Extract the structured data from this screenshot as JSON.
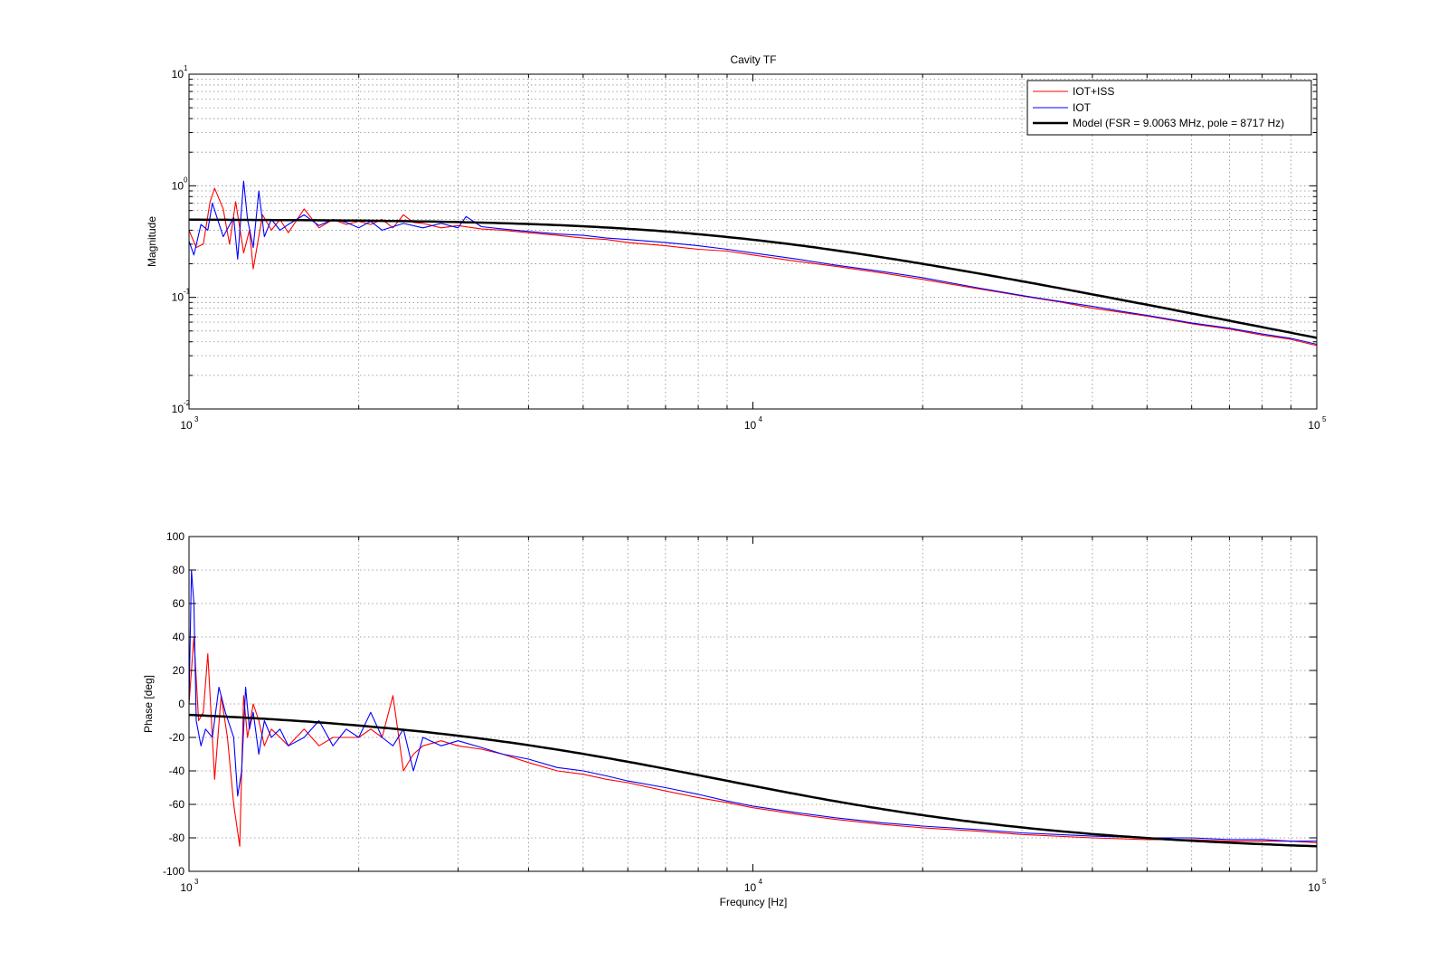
{
  "figure": {
    "title": "Cavity TF",
    "background": "#ffffff"
  },
  "chart_data": [
    {
      "type": "line",
      "title": "Cavity TF",
      "xlabel": "",
      "ylabel": "Magnitude",
      "xscale": "log",
      "yscale": "log",
      "xlim": [
        1000,
        100000
      ],
      "ylim": [
        0.01,
        10
      ],
      "x_ticks": [
        1000,
        10000,
        100000
      ],
      "x_tick_labels": [
        {
          "base": "10",
          "exp": "3"
        },
        {
          "base": "10",
          "exp": "4"
        },
        {
          "base": "10",
          "exp": "5"
        }
      ],
      "y_ticks": [
        0.01,
        0.1,
        1,
        10
      ],
      "y_tick_labels": [
        {
          "base": "10",
          "exp": "-2"
        },
        {
          "base": "10",
          "exp": "-1"
        },
        {
          "base": "10",
          "exp": "0"
        },
        {
          "base": "10",
          "exp": "1"
        }
      ],
      "grid": true,
      "legend_position": "top-right",
      "series": [
        {
          "name": "IOT+ISS",
          "color": "#ff0000",
          "stroke": "thin",
          "x": [
            1000,
            1030,
            1060,
            1090,
            1110,
            1150,
            1180,
            1210,
            1250,
            1280,
            1300,
            1350,
            1400,
            1450,
            1500,
            1600,
            1700,
            1800,
            1900,
            2000,
            2100,
            2200,
            2300,
            2400,
            2500,
            2600,
            2800,
            3000,
            3300,
            3600,
            4000,
            4500,
            5000,
            5500,
            6000,
            7000,
            8000,
            9000,
            10000,
            12000,
            14000,
            17000,
            20000,
            25000,
            30000,
            35000,
            40000,
            50000,
            60000,
            70000,
            80000,
            90000,
            100000
          ],
          "y": [
            0.4,
            0.28,
            0.3,
            0.72,
            0.95,
            0.62,
            0.3,
            0.72,
            0.25,
            0.4,
            0.18,
            0.55,
            0.4,
            0.5,
            0.38,
            0.62,
            0.42,
            0.5,
            0.45,
            0.48,
            0.45,
            0.5,
            0.42,
            0.55,
            0.47,
            0.46,
            0.42,
            0.44,
            0.41,
            0.4,
            0.38,
            0.36,
            0.34,
            0.33,
            0.31,
            0.29,
            0.27,
            0.26,
            0.24,
            0.21,
            0.19,
            0.165,
            0.145,
            0.12,
            0.103,
            0.091,
            0.08,
            0.068,
            0.058,
            0.052,
            0.046,
            0.042,
            0.037
          ]
        },
        {
          "name": "IOT",
          "color": "#0000ff",
          "stroke": "thin",
          "x": [
            1000,
            1020,
            1050,
            1080,
            1100,
            1150,
            1200,
            1220,
            1250,
            1270,
            1300,
            1330,
            1360,
            1400,
            1450,
            1500,
            1600,
            1700,
            1800,
            1900,
            2000,
            2100,
            2200,
            2400,
            2600,
            2800,
            3000,
            3100,
            3300,
            3600,
            4000,
            4500,
            5000,
            5500,
            6000,
            7000,
            7500,
            8000,
            9000,
            10000,
            12000,
            14000,
            17000,
            20000,
            25000,
            30000,
            35000,
            40000,
            45000,
            50000,
            60000,
            70000,
            80000,
            90000,
            100000
          ],
          "y": [
            0.32,
            0.24,
            0.45,
            0.4,
            0.7,
            0.35,
            0.52,
            0.22,
            1.1,
            0.5,
            0.28,
            0.9,
            0.35,
            0.5,
            0.4,
            0.45,
            0.55,
            0.44,
            0.5,
            0.47,
            0.42,
            0.48,
            0.4,
            0.46,
            0.42,
            0.46,
            0.42,
            0.53,
            0.43,
            0.41,
            0.39,
            0.37,
            0.36,
            0.34,
            0.33,
            0.31,
            0.3,
            0.29,
            0.27,
            0.25,
            0.22,
            0.195,
            0.17,
            0.15,
            0.122,
            0.104,
            0.092,
            0.083,
            0.075,
            0.069,
            0.059,
            0.053,
            0.047,
            0.043,
            0.038
          ]
        },
        {
          "name": "Model (FSR = 9.0063 MHz, pole = 8717 Hz)",
          "color": "#000000",
          "stroke": "thick",
          "model": "pole",
          "dc_gain": 0.5,
          "pole_hz": 8717,
          "fsr_mhz": 9.0063
        }
      ]
    },
    {
      "type": "line",
      "title": "",
      "xlabel": "Frequncy [Hz]",
      "ylabel": "Phase [deg]",
      "xscale": "log",
      "yscale": "linear",
      "xlim": [
        1000,
        100000
      ],
      "ylim": [
        -100,
        100
      ],
      "x_ticks": [
        1000,
        10000,
        100000
      ],
      "x_tick_labels": [
        {
          "base": "10",
          "exp": "3"
        },
        {
          "base": "10",
          "exp": "4"
        },
        {
          "base": "10",
          "exp": "5"
        }
      ],
      "y_ticks": [
        -100,
        -80,
        -60,
        -40,
        -20,
        0,
        20,
        40,
        60,
        80,
        100
      ],
      "y_tick_labels": [
        "-100",
        "-80",
        "-60",
        "-40",
        "-20",
        "0",
        "20",
        "40",
        "60",
        "80",
        "100"
      ],
      "grid": true,
      "series": [
        {
          "name": "IOT+ISS",
          "color": "#ff0000",
          "stroke": "thin",
          "x": [
            1000,
            1020,
            1040,
            1060,
            1080,
            1110,
            1140,
            1170,
            1200,
            1230,
            1250,
            1270,
            1300,
            1330,
            1360,
            1400,
            1450,
            1500,
            1600,
            1700,
            1800,
            1900,
            2000,
            2100,
            2200,
            2300,
            2400,
            2500,
            2600,
            2800,
            3000,
            3300,
            3600,
            4000,
            4500,
            5000,
            5500,
            6000,
            7000,
            8000,
            9000,
            10000,
            12000,
            14000,
            17000,
            20000,
            25000,
            30000,
            40000,
            50000,
            60000,
            70000,
            80000,
            90000,
            100000
          ],
          "y": [
            0,
            40,
            -10,
            -5,
            30,
            -45,
            5,
            -20,
            -60,
            -85,
            5,
            -20,
            0,
            -10,
            -25,
            -15,
            -20,
            -25,
            -15,
            -25,
            -20,
            -20,
            -20,
            -15,
            -20,
            5,
            -40,
            -30,
            -25,
            -22,
            -25,
            -27,
            -30,
            -35,
            -40,
            -42,
            -45,
            -47,
            -52,
            -56,
            -59,
            -62,
            -66,
            -69,
            -72,
            -74,
            -76,
            -78,
            -80,
            -81,
            -81,
            -82,
            -82,
            -82,
            -83
          ]
        },
        {
          "name": "IOT",
          "color": "#0000ff",
          "stroke": "thin",
          "x": [
            1000,
            1010,
            1020,
            1030,
            1050,
            1070,
            1100,
            1130,
            1160,
            1200,
            1220,
            1240,
            1260,
            1280,
            1300,
            1330,
            1360,
            1400,
            1450,
            1500,
            1600,
            1700,
            1800,
            1900,
            2000,
            2100,
            2200,
            2300,
            2400,
            2500,
            2600,
            2800,
            3000,
            3300,
            3600,
            4000,
            4500,
            5000,
            5500,
            6000,
            7000,
            8000,
            9000,
            10000,
            12000,
            14000,
            17000,
            20000,
            25000,
            30000,
            40000,
            50000,
            60000,
            70000,
            80000,
            90000,
            100000
          ],
          "y": [
            0,
            80,
            60,
            -10,
            -25,
            -15,
            -20,
            10,
            -5,
            -20,
            -55,
            -40,
            10,
            -15,
            -5,
            -30,
            -10,
            -20,
            -15,
            -25,
            -20,
            -10,
            -25,
            -15,
            -20,
            -5,
            -20,
            -25,
            -15,
            -40,
            -20,
            -25,
            -22,
            -26,
            -30,
            -33,
            -38,
            -40,
            -43,
            -46,
            -50,
            -54,
            -58,
            -61,
            -65,
            -68,
            -71,
            -73,
            -75,
            -77,
            -79,
            -80,
            -80,
            -81,
            -81,
            -82,
            -82
          ]
        },
        {
          "name": "Model (FSR = 9.0063 MHz, pole = 8717 Hz)",
          "color": "#000000",
          "stroke": "thick",
          "model": "pole",
          "pole_hz": 8717,
          "fsr_mhz": 9.0063
        }
      ]
    }
  ]
}
